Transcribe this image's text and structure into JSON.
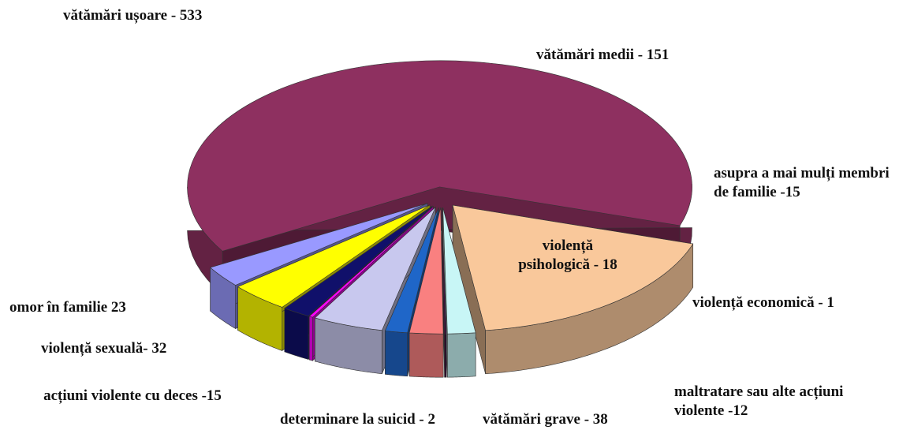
{
  "chart_data": {
    "type": "pie3d",
    "categories": [
      "vătămări ușoare - 533",
      "vătămări medii - 151",
      "asupra a mai mulți membri de familie -15",
      "violență economică - 1",
      "violență psihologică - 18",
      "maltratare sau alte acțiuni violente -12",
      "vătămări grave - 38",
      "determinare la suicid - 2",
      "acțiuni violente cu deces -15",
      "violență sexuală- 32",
      "omor în familie 23"
    ],
    "values": [
      533,
      151,
      15,
      1,
      18,
      12,
      38,
      2,
      15,
      32,
      23
    ],
    "colors": [
      "#8e3060",
      "#f9c89b",
      "#c8f6f6",
      "#3a0f3a",
      "#f98080",
      "#1f66c8",
      "#c8c8ee",
      "#ff00ff",
      "#10106a",
      "#ffff00",
      "#9999ff"
    ]
  }
}
